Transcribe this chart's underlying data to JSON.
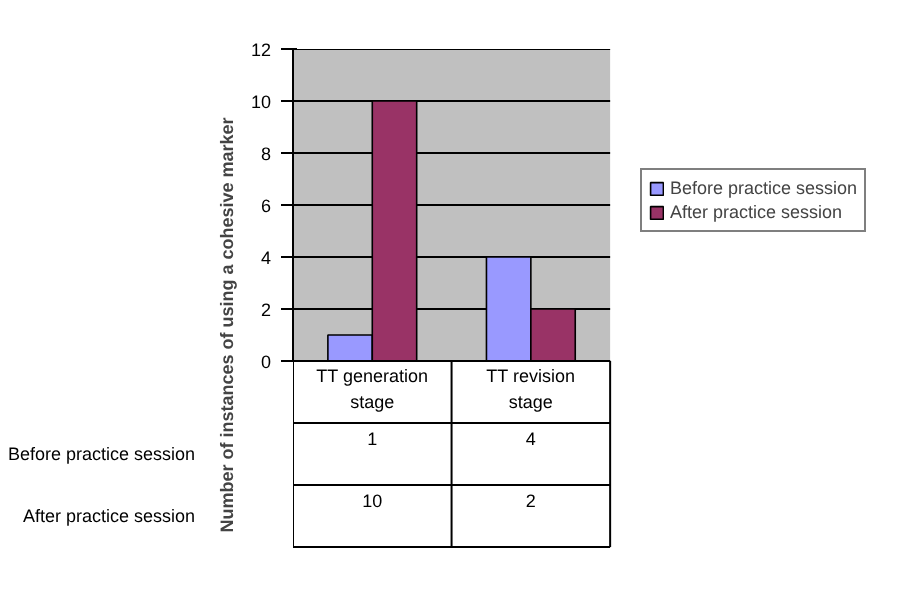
{
  "chart_data": {
    "type": "bar",
    "ylabel": "Number of instances of using a cohesive marker",
    "categories": [
      "TT generation stage",
      "TT revision stage"
    ],
    "series": [
      {
        "name": "Before practice session",
        "color": "#9999ff",
        "values": [
          1,
          4
        ]
      },
      {
        "name": "After practice session",
        "color": "#993366",
        "values": [
          10,
          2
        ]
      }
    ],
    "ylim": [
      0,
      12
    ],
    "yticks": [
      0,
      2,
      4,
      6,
      8,
      10,
      12
    ],
    "grid": "y",
    "legend": "right",
    "data_labels": true
  }
}
